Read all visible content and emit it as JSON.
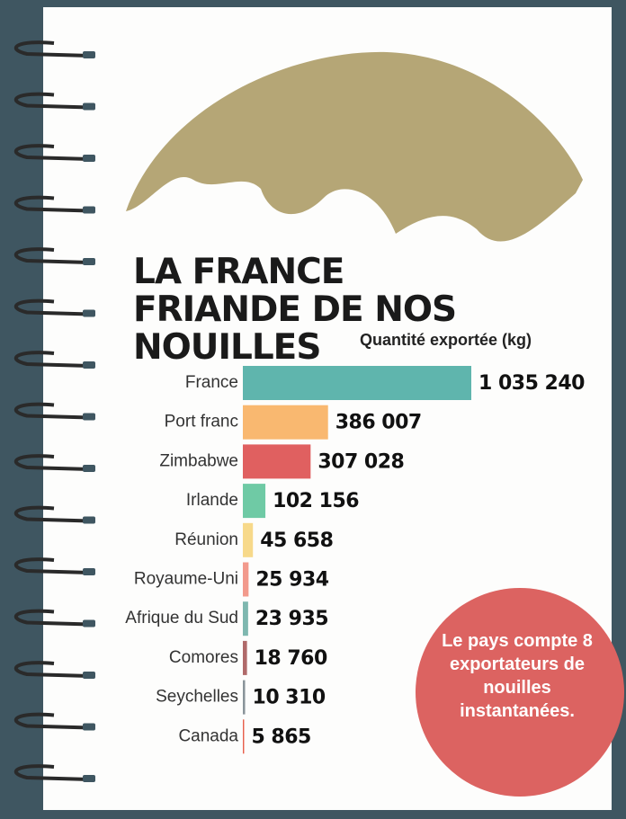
{
  "chart_data": {
    "type": "bar",
    "orientation": "horizontal",
    "title": "LA FRANCE FRIANDE DE NOS NOUILLES",
    "axis_label": "Quantité exportée (kg)",
    "categories": [
      "France",
      "Port franc",
      "Zimbabwe",
      "Irlande",
      "Réunion",
      "Royaume-Uni",
      "Afrique du Sud",
      "Comores",
      "Seychelles",
      "Canada"
    ],
    "values": [
      1035240,
      386007,
      307028,
      102156,
      45658,
      25934,
      23935,
      18760,
      10310,
      5865
    ],
    "value_labels": [
      "1 035 240",
      "386 007",
      "307 028",
      "102 156",
      "45 658",
      "25 934",
      "23 935",
      "18 760",
      "10 310",
      "5 865"
    ],
    "colors": [
      "#5fb5ad",
      "#f9b870",
      "#e06060",
      "#6fcaa5",
      "#f7d98a",
      "#f29a8c",
      "#7fb8b0",
      "#b06a6a",
      "#8a949a",
      "#e8604c"
    ],
    "annotation": "Le pays compte 8 exportateurs de nouilles instantanées."
  }
}
